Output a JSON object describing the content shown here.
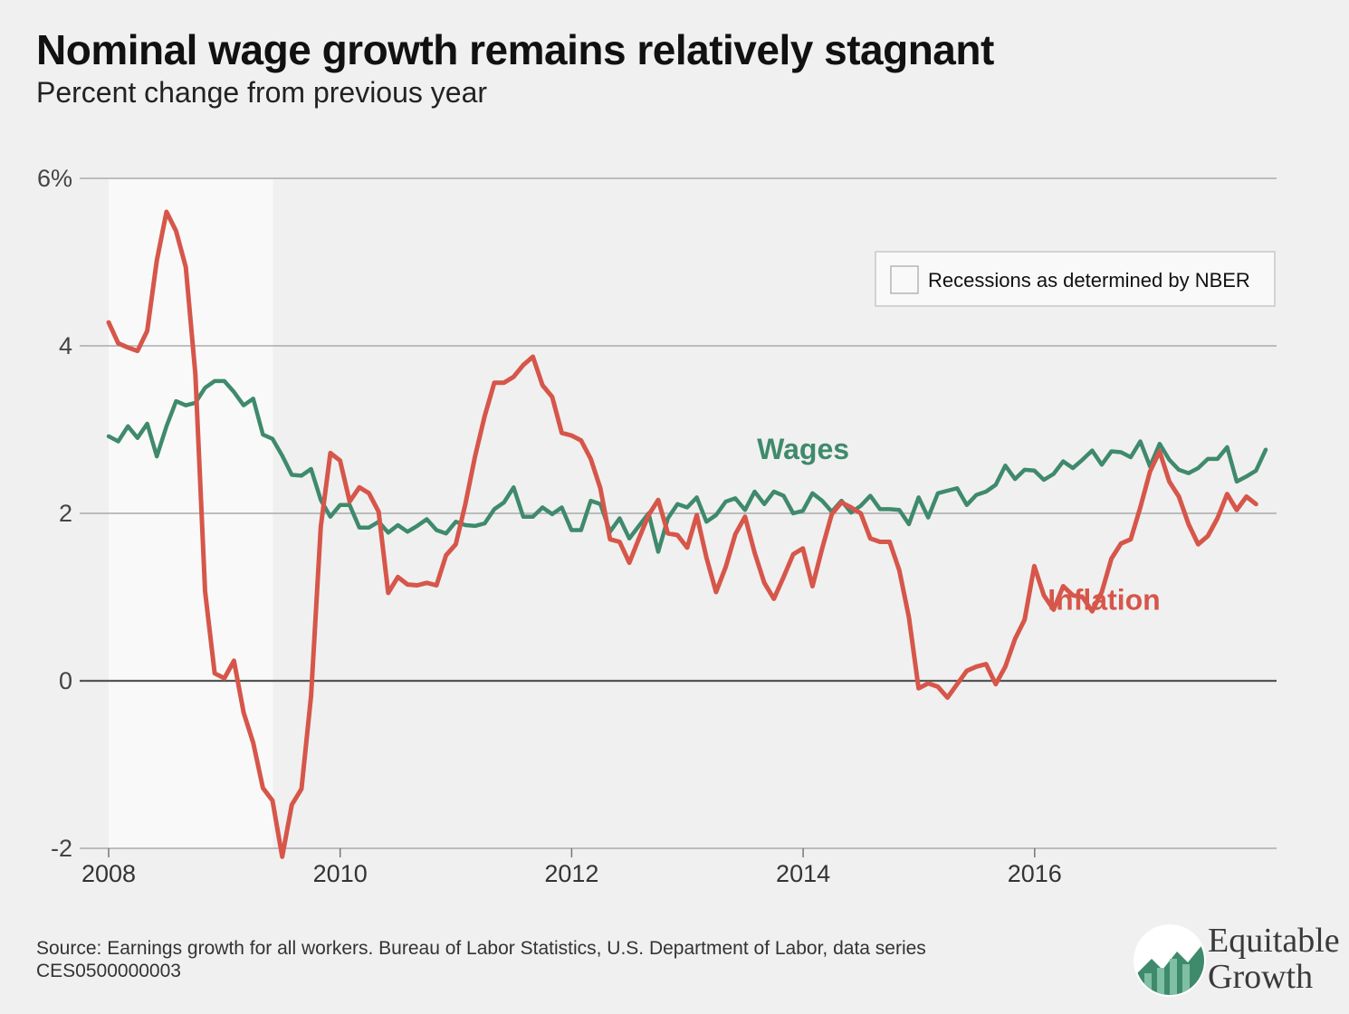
{
  "title": "Nominal wage growth remains relatively stagnant",
  "subtitle": "Percent change from previous year",
  "source": "Source: Earnings growth for all workers. Bureau of Labor Statistics, U.S. Department of Labor, data series CES0500000003",
  "logo": {
    "line1": "Equitable",
    "line2": "Growth",
    "icon": "growth-chart-icon"
  },
  "colors": {
    "wages": "#3f8a6c",
    "inflation": "#d6564a",
    "recession": "#f9f9f9",
    "grid": "#aaaaaa",
    "zero": "#555555",
    "background": "#f0f0f0"
  },
  "chart_data": {
    "type": "line",
    "xlim": [
      2008.0,
      2018.09
    ],
    "ylim": [
      -2,
      6
    ],
    "yticks": [
      {
        "value": 6,
        "label": "6%"
      },
      {
        "value": 4,
        "label": "4"
      },
      {
        "value": 2,
        "label": "2"
      },
      {
        "value": 0,
        "label": "0"
      },
      {
        "value": -2,
        "label": "-2"
      }
    ],
    "xticks": [
      {
        "value": 2008,
        "label": "2008"
      },
      {
        "value": 2010,
        "label": "2010"
      },
      {
        "value": 2012,
        "label": "2012"
      },
      {
        "value": 2014,
        "label": "2014"
      },
      {
        "value": 2016,
        "label": "2016"
      }
    ],
    "recession": {
      "start": 2008.0,
      "end": 2009.42
    },
    "legend": {
      "label": "Recessions as determined by NBER",
      "position": "top-right"
    },
    "grid": true,
    "series": [
      {
        "name": "Wages",
        "key": "wages",
        "x_start": 2008.0,
        "x_step": 0.0833,
        "values": [
          2.92,
          2.86,
          3.04,
          2.9,
          3.07,
          2.68,
          3.04,
          3.34,
          3.29,
          3.32,
          3.5,
          3.58,
          3.58,
          3.45,
          3.29,
          3.37,
          2.94,
          2.89,
          2.69,
          2.46,
          2.45,
          2.53,
          2.16,
          1.96,
          2.1,
          2.1,
          1.83,
          1.83,
          1.9,
          1.77,
          1.86,
          1.78,
          1.85,
          1.93,
          1.8,
          1.76,
          1.9,
          1.86,
          1.85,
          1.88,
          2.05,
          2.13,
          2.31,
          1.96,
          1.96,
          2.07,
          1.99,
          2.07,
          1.8,
          1.8,
          2.15,
          2.11,
          1.78,
          1.94,
          1.7,
          1.85,
          2.0,
          1.54,
          1.94,
          2.11,
          2.07,
          2.19,
          1.9,
          1.98,
          2.14,
          2.18,
          2.04,
          2.26,
          2.11,
          2.26,
          2.21,
          2.0,
          2.03,
          2.24,
          2.15,
          2.02,
          2.15,
          2.01,
          2.09,
          2.21,
          2.05,
          2.05,
          2.04,
          1.87,
          2.19,
          1.95,
          2.24,
          2.27,
          2.3,
          2.1,
          2.22,
          2.26,
          2.34,
          2.57,
          2.41,
          2.52,
          2.51,
          2.4,
          2.47,
          2.62,
          2.54,
          2.64,
          2.75,
          2.58,
          2.74,
          2.73,
          2.67,
          2.86,
          2.56,
          2.83,
          2.64,
          2.52,
          2.48,
          2.54,
          2.65,
          2.65,
          2.79,
          2.38,
          2.44,
          2.51,
          2.76
        ]
      },
      {
        "name": "Inflation",
        "key": "inflation",
        "x_start": 2008.0,
        "x_step": 0.0833,
        "values": [
          4.28,
          4.03,
          3.98,
          3.94,
          4.18,
          5.02,
          5.6,
          5.37,
          4.94,
          3.66,
          1.07,
          0.09,
          0.03,
          0.24,
          -0.38,
          -0.74,
          -1.28,
          -1.43,
          -2.1,
          -1.48,
          -1.29,
          -0.18,
          1.84,
          2.72,
          2.63,
          2.14,
          2.31,
          2.24,
          2.02,
          1.05,
          1.24,
          1.15,
          1.14,
          1.17,
          1.14,
          1.5,
          1.63,
          2.11,
          2.68,
          3.16,
          3.56,
          3.56,
          3.63,
          3.77,
          3.87,
          3.53,
          3.39,
          2.96,
          2.93,
          2.87,
          2.65,
          2.3,
          1.69,
          1.66,
          1.41,
          1.7,
          1.98,
          2.16,
          1.76,
          1.74,
          1.59,
          1.98,
          1.47,
          1.06,
          1.36,
          1.75,
          1.96,
          1.53,
          1.17,
          0.98,
          1.24,
          1.51,
          1.58,
          1.13,
          1.58,
          1.99,
          2.13,
          2.07,
          2.0,
          1.7,
          1.66,
          1.66,
          1.32,
          0.76,
          -0.09,
          -0.03,
          -0.07,
          -0.2,
          -0.04,
          0.12,
          0.17,
          0.2,
          -0.04,
          0.17,
          0.5,
          0.73,
          1.37,
          1.02,
          0.85,
          1.13,
          1.02,
          1.0,
          0.83,
          1.06,
          1.46,
          1.64,
          1.69,
          2.07,
          2.5,
          2.74,
          2.38,
          2.2,
          1.87,
          1.63,
          1.73,
          1.94,
          2.23,
          2.04,
          2.2,
          2.11
        ]
      }
    ],
    "annotations": [
      {
        "text": "Wages",
        "series": "wages",
        "x": 2014.0,
        "y": 2.65
      },
      {
        "text": "Inflation",
        "series": "inflation",
        "x": 2016.6,
        "y": 0.85
      }
    ]
  }
}
